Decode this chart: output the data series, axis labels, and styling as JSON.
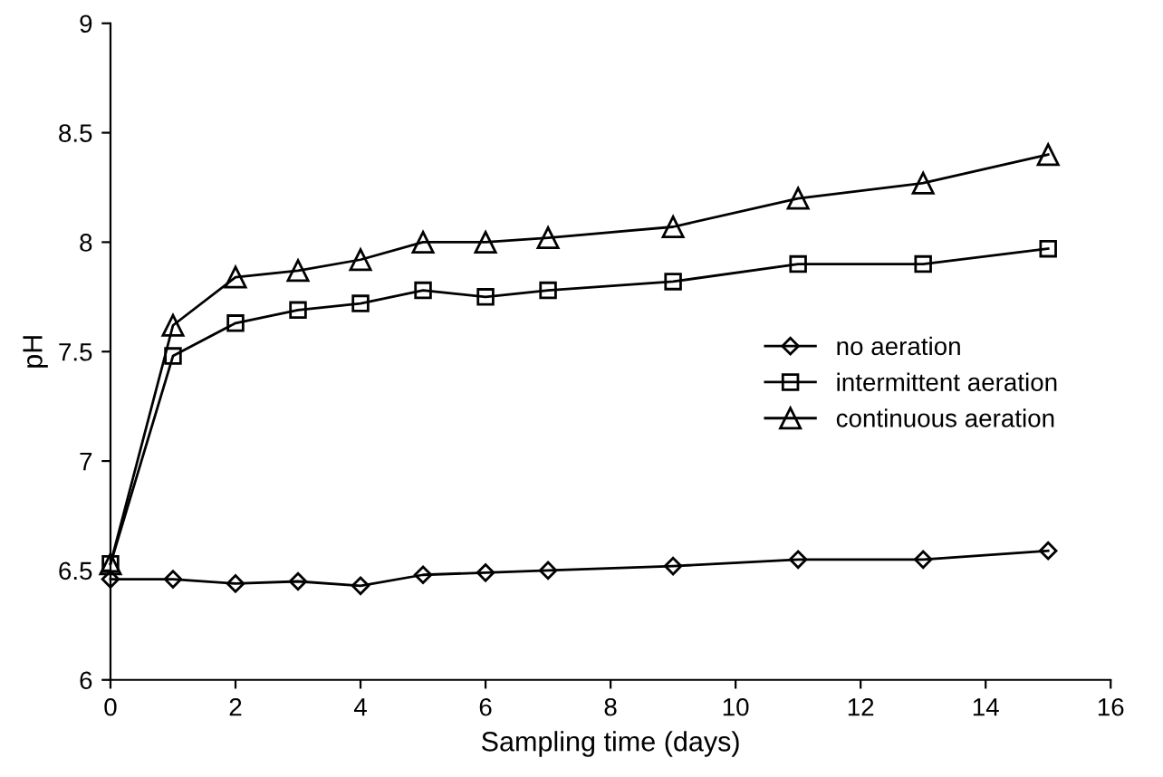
{
  "chart_data": {
    "type": "line",
    "xlabel": "Sampling time (days)",
    "ylabel": "pH",
    "x": [
      0,
      1,
      2,
      3,
      4,
      5,
      6,
      7,
      9,
      11,
      13,
      15
    ],
    "series": [
      {
        "name": "no aeration",
        "color": "#000000",
        "marker": "diamond",
        "values": [
          6.46,
          6.46,
          6.44,
          6.45,
          6.43,
          6.48,
          6.49,
          6.5,
          6.52,
          6.55,
          6.55,
          6.59
        ]
      },
      {
        "name": "intermittent aeration",
        "color": "#000000",
        "marker": "square",
        "values": [
          6.53,
          7.48,
          7.63,
          7.69,
          7.72,
          7.78,
          7.75,
          7.78,
          7.82,
          7.9,
          7.9,
          7.97
        ]
      },
      {
        "name": "continuous aeration",
        "color": "#000000",
        "marker": "triangle",
        "values": [
          6.53,
          7.62,
          7.84,
          7.87,
          7.92,
          8.0,
          8.0,
          8.02,
          8.07,
          8.2,
          8.27,
          8.4
        ]
      }
    ],
    "xlim": [
      0,
      16
    ],
    "xticks": [
      0,
      2,
      4,
      6,
      8,
      10,
      12,
      14,
      16
    ],
    "ylim": [
      6,
      9
    ],
    "yticks": [
      6,
      6.5,
      7,
      7.5,
      8,
      8.5,
      9
    ],
    "grid": false,
    "legend": "right",
    "line_style": "solid"
  }
}
